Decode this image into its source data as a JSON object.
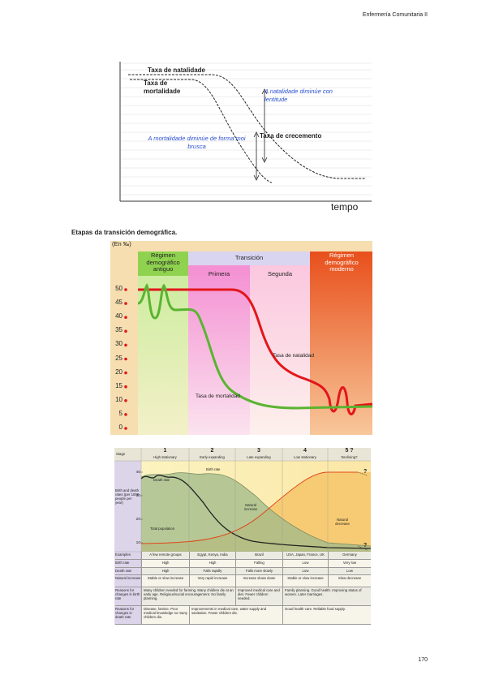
{
  "header": {
    "running_title": "Enfermería Comunitaria II"
  },
  "figure1": {
    "labels": {
      "birth_rate": "Taxa de natalidade",
      "death_rate": "Taxa de mortalidade",
      "birth_note": "A natalidade diminúe con lentitude",
      "death_note": "A mortalidade diminúe de forma moi brusca",
      "growth": "Taxa de crecemento",
      "time_axis": "tempo"
    }
  },
  "caption": "Etapas da transición demográfica.",
  "figure2": {
    "y_axis_label": "(En ‰)",
    "yticks": [
      0,
      5,
      10,
      15,
      20,
      25,
      30,
      35,
      40,
      45,
      50
    ],
    "regions": [
      "Régimen demográfico antiguo",
      "Transición",
      "Régimen demográfico moderno"
    ],
    "phases": [
      "Primera",
      "Segunda"
    ],
    "curve_labels": [
      "Tasa de natalidad",
      "Tasa de mortalidad"
    ]
  },
  "figure3": {
    "stage_label": "Stage",
    "stages": [
      {
        "number": "1",
        "name": "High stationary"
      },
      {
        "number": "2",
        "name": "Early expanding"
      },
      {
        "number": "3",
        "name": "Late expanding"
      },
      {
        "number": "4",
        "name": "Low stationary"
      },
      {
        "number": "5 ?",
        "name": "Declining?"
      }
    ],
    "y_axis_label": "Birth and death rates (per 1000 people per year)",
    "yticks": [
      10,
      20,
      30,
      40
    ],
    "curve_labels": [
      "Birth rate",
      "Death rate",
      "Natural increase",
      "Total population",
      "Natural decrease"
    ],
    "uncertainty_mark": "?",
    "rows": [
      {
        "label": "Examples",
        "cells": [
          "A few remote groups",
          "Egypt, Kenya, India",
          "Brazil",
          "USA, Japan, France, UK",
          "Germany"
        ]
      },
      {
        "label": "Birth rate",
        "cells": [
          "High",
          "High",
          "Falling",
          "Low",
          "Very low"
        ]
      },
      {
        "label": "Death rate",
        "cells": [
          "High",
          "Falls rapidly",
          "Falls more slowly",
          "Low",
          "Low"
        ]
      },
      {
        "label": "Natural increase",
        "cells": [
          "Stable or slow increase",
          "Very rapid increase",
          "Increase slows down",
          "Stable or slow increase",
          "Slow decrease"
        ]
      },
      {
        "label": "Reasons for changes in birth rate",
        "cells": [
          "Many children needed for farming. Many children die at an early age. Religious/social encouragement. No family planning.",
          null,
          "Improved medical care and diet. Fewer children needed.",
          "Family planning. Good health. Improving status of women. Later marriages.",
          null
        ]
      },
      {
        "label": "Reasons for changes in death rate",
        "cells": [
          "Disease, famine. Poor medical knowledge so many children die.",
          "Improvements in medical care, water supply and sanitation. Fewer children die.",
          null,
          "Good health care. Reliable food supply.",
          null
        ]
      }
    ]
  },
  "page_number": "170"
}
